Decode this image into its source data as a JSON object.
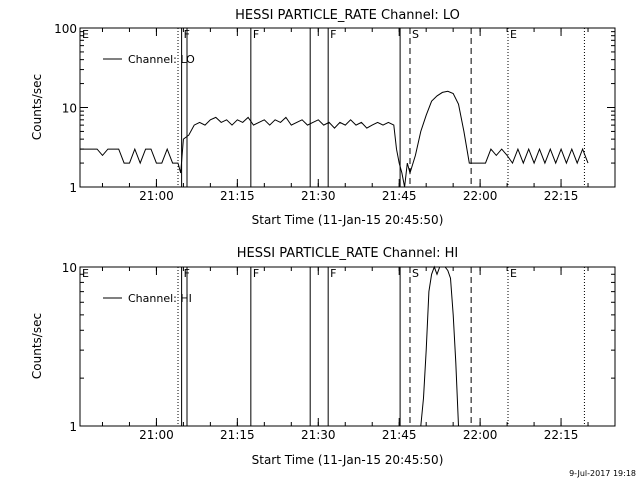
{
  "footer": {
    "timestamp": "9-Jul-2017 19:18"
  },
  "chart_data": [
    {
      "type": "line",
      "title": "HESSI PARTICLE_RATE Channel: LO",
      "xlabel": "Start Time (11-Jan-15 20:45:50)",
      "ylabel": "Counts/sec",
      "y_scale": "log",
      "xlim": [
        "20:45:50",
        "22:25:00"
      ],
      "ylim": [
        1,
        100
      ],
      "x_ticks": [
        "21:00",
        "21:15",
        "21:30",
        "21:45",
        "22:00",
        "22:15"
      ],
      "y_ticks": [
        "1",
        "10",
        "100"
      ],
      "legend": {
        "position": "top-left",
        "entries": [
          "Channel: LO"
        ]
      },
      "series": [
        {
          "name": "Channel: LO",
          "points": [
            [
              "20:45:50",
              3
            ],
            [
              "20:49:00",
              3
            ],
            [
              "20:50:00",
              2.5
            ],
            [
              "20:51:00",
              3
            ],
            [
              "20:53:00",
              3
            ],
            [
              "20:54:00",
              2
            ],
            [
              "20:55:00",
              2
            ],
            [
              "20:56:00",
              3
            ],
            [
              "20:57:00",
              2
            ],
            [
              "20:58:00",
              3
            ],
            [
              "20:59:00",
              3
            ],
            [
              "21:00:00",
              2
            ],
            [
              "21:01:00",
              2
            ],
            [
              "21:02:00",
              3
            ],
            [
              "21:03:00",
              2
            ],
            [
              "21:04:00",
              2
            ],
            [
              "21:04:30",
              1.5
            ],
            [
              "21:05:00",
              4
            ],
            [
              "21:06:00",
              4.5
            ],
            [
              "21:07:00",
              6
            ],
            [
              "21:08:00",
              6.5
            ],
            [
              "21:09:00",
              6
            ],
            [
              "21:10:00",
              7
            ],
            [
              "21:11:00",
              7.5
            ],
            [
              "21:12:00",
              6.5
            ],
            [
              "21:13:00",
              7
            ],
            [
              "21:14:00",
              6
            ],
            [
              "21:15:00",
              7
            ],
            [
              "21:16:00",
              6.5
            ],
            [
              "21:17:00",
              7.5
            ],
            [
              "21:18:00",
              6
            ],
            [
              "21:19:00",
              6.5
            ],
            [
              "21:20:00",
              7
            ],
            [
              "21:21:00",
              6
            ],
            [
              "21:22:00",
              7
            ],
            [
              "21:23:00",
              6.5
            ],
            [
              "21:24:00",
              7.5
            ],
            [
              "21:25:00",
              6
            ],
            [
              "21:26:00",
              6.5
            ],
            [
              "21:27:00",
              7
            ],
            [
              "21:28:00",
              6
            ],
            [
              "21:29:00",
              6.5
            ],
            [
              "21:30:00",
              7
            ],
            [
              "21:31:00",
              6
            ],
            [
              "21:32:00",
              6.5
            ],
            [
              "21:33:00",
              5.5
            ],
            [
              "21:34:00",
              6.5
            ],
            [
              "21:35:00",
              6
            ],
            [
              "21:36:00",
              7
            ],
            [
              "21:37:00",
              6
            ],
            [
              "21:38:00",
              6.5
            ],
            [
              "21:39:00",
              5.5
            ],
            [
              "21:40:00",
              6
            ],
            [
              "21:41:00",
              6.5
            ],
            [
              "21:42:00",
              6
            ],
            [
              "21:43:00",
              6.5
            ],
            [
              "21:44:00",
              6
            ],
            [
              "21:44:30",
              3
            ],
            [
              "21:45:00",
              2
            ],
            [
              "21:45:30",
              1.5
            ],
            [
              "21:46:00",
              1
            ],
            [
              "21:46:30",
              2
            ],
            [
              "21:47:00",
              1.5
            ],
            [
              "21:48:00",
              2.5
            ],
            [
              "21:49:00",
              5
            ],
            [
              "21:50:00",
              8
            ],
            [
              "21:51:00",
              12
            ],
            [
              "21:52:00",
              14
            ],
            [
              "21:53:00",
              15.5
            ],
            [
              "21:54:00",
              16
            ],
            [
              "21:55:00",
              15
            ],
            [
              "21:56:00",
              11
            ],
            [
              "21:57:00",
              5
            ],
            [
              "21:58:00",
              2
            ],
            [
              "21:59:00",
              2
            ],
            [
              "22:00:00",
              2
            ],
            [
              "22:01:00",
              2
            ],
            [
              "22:02:00",
              3
            ],
            [
              "22:03:00",
              2.5
            ],
            [
              "22:04:00",
              3
            ],
            [
              "22:05:00",
              2.5
            ],
            [
              "22:06:00",
              2
            ],
            [
              "22:07:00",
              3
            ],
            [
              "22:08:00",
              2
            ],
            [
              "22:09:00",
              3
            ],
            [
              "22:10:00",
              2
            ],
            [
              "22:11:00",
              3
            ],
            [
              "22:12:00",
              2
            ],
            [
              "22:13:00",
              3
            ],
            [
              "22:14:00",
              2
            ],
            [
              "22:15:00",
              3
            ],
            [
              "22:16:00",
              2
            ],
            [
              "22:17:00",
              3
            ],
            [
              "22:18:00",
              2
            ],
            [
              "22:19:00",
              3
            ],
            [
              "22:20:00",
              2
            ]
          ]
        }
      ],
      "markers": [
        {
          "label": "E",
          "time": "20:45:50",
          "style": "none"
        },
        {
          "label": "",
          "time": "21:04:00",
          "style": "dotted"
        },
        {
          "label": "F",
          "time": "21:04:40",
          "style": "solid"
        },
        {
          "label": "",
          "time": "21:05:40",
          "style": "solid"
        },
        {
          "label": "F",
          "time": "21:17:30",
          "style": "solid"
        },
        {
          "label": "",
          "time": "21:28:30",
          "style": "solid"
        },
        {
          "label": "F",
          "time": "21:31:50",
          "style": "solid"
        },
        {
          "label": "",
          "time": "21:45:10",
          "style": "solid"
        },
        {
          "label": "S",
          "time": "21:47:00",
          "style": "dashed"
        },
        {
          "label": "",
          "time": "21:58:20",
          "style": "dashed"
        },
        {
          "label": "E",
          "time": "22:05:10",
          "style": "dotted"
        },
        {
          "label": "",
          "time": "22:19:20",
          "style": "dotted"
        }
      ]
    },
    {
      "type": "line",
      "title": "HESSI PARTICLE_RATE Channel: HI",
      "xlabel": "Start Time (11-Jan-15 20:45:50)",
      "ylabel": "Counts/sec",
      "y_scale": "log",
      "xlim": [
        "20:45:50",
        "22:25:00"
      ],
      "ylim": [
        1,
        10
      ],
      "x_ticks": [
        "21:00",
        "21:15",
        "21:30",
        "21:45",
        "22:00",
        "22:15"
      ],
      "y_ticks": [
        "1",
        "10"
      ],
      "legend": {
        "position": "top-left",
        "entries": [
          "Channel: HI"
        ]
      },
      "series": [
        {
          "name": "Channel: HI",
          "points": [
            [
              "21:49:00",
              1
            ],
            [
              "21:49:30",
              1.5
            ],
            [
              "21:50:00",
              3
            ],
            [
              "21:50:30",
              7
            ],
            [
              "21:51:00",
              9
            ],
            [
              "21:51:30",
              10
            ],
            [
              "21:52:00",
              9
            ],
            [
              "21:52:30",
              10
            ],
            [
              "21:53:00",
              10
            ],
            [
              "21:53:30",
              10
            ],
            [
              "21:54:00",
              9.5
            ],
            [
              "21:54:30",
              8.5
            ],
            [
              "21:55:00",
              5
            ],
            [
              "21:55:30",
              2.5
            ],
            [
              "21:56:00",
              1
            ]
          ]
        }
      ],
      "markers": [
        {
          "label": "E",
          "time": "20:45:50",
          "style": "none"
        },
        {
          "label": "",
          "time": "21:04:00",
          "style": "dotted"
        },
        {
          "label": "F",
          "time": "21:04:40",
          "style": "solid"
        },
        {
          "label": "",
          "time": "21:05:40",
          "style": "solid"
        },
        {
          "label": "F",
          "time": "21:17:30",
          "style": "solid"
        },
        {
          "label": "",
          "time": "21:28:30",
          "style": "solid"
        },
        {
          "label": "F",
          "time": "21:31:50",
          "style": "solid"
        },
        {
          "label": "",
          "time": "21:45:10",
          "style": "solid"
        },
        {
          "label": "S",
          "time": "21:47:00",
          "style": "dashed"
        },
        {
          "label": "",
          "time": "21:58:20",
          "style": "dashed"
        },
        {
          "label": "E",
          "time": "22:05:10",
          "style": "dotted"
        },
        {
          "label": "",
          "time": "22:19:20",
          "style": "dotted"
        }
      ]
    }
  ]
}
